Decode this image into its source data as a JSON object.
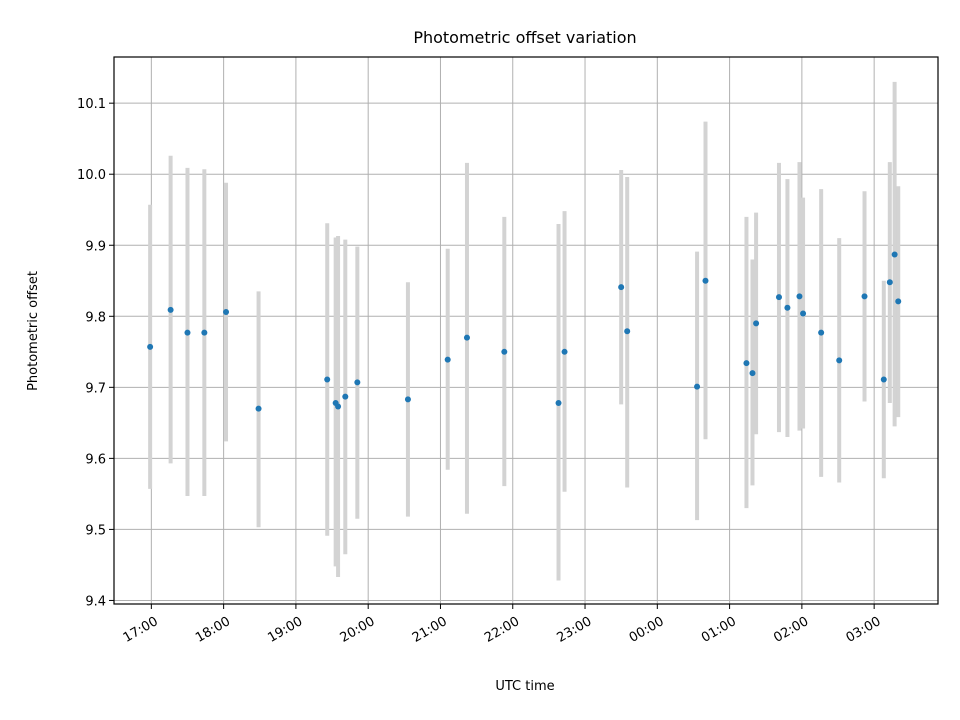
{
  "chart_data": {
    "type": "scatter",
    "title": "Photometric offset variation",
    "xlabel": "UTC time",
    "ylabel": "Photometric offset",
    "ylim": [
      9.395,
      10.165
    ],
    "xlim": [
      "16:29",
      "03:53"
    ],
    "grid": true,
    "point_color": "#1f77b4",
    "errorbar_color": "#d3d3d3",
    "x_ticks": [
      "17:00",
      "18:00",
      "19:00",
      "20:00",
      "21:00",
      "22:00",
      "23:00",
      "00:00",
      "01:00",
      "02:00",
      "03:00"
    ],
    "y_ticks": [
      9.4,
      9.5,
      9.6,
      9.7,
      9.8,
      9.9,
      10.0,
      10.1
    ],
    "y_tick_labels": [
      "9.4",
      "9.5",
      "9.6",
      "9.7",
      "9.8",
      "9.9",
      "10.0",
      "10.1"
    ],
    "points": [
      {
        "x": "16:59",
        "y": 9.757,
        "err_low": 9.557,
        "err_high": 9.957
      },
      {
        "x": "17:16",
        "y": 9.809,
        "err_low": 9.593,
        "err_high": 10.026
      },
      {
        "x": "17:30",
        "y": 9.777,
        "err_low": 9.547,
        "err_high": 10.009
      },
      {
        "x": "17:44",
        "y": 9.777,
        "err_low": 9.547,
        "err_high": 10.007
      },
      {
        "x": "18:02",
        "y": 9.806,
        "err_low": 9.624,
        "err_high": 9.988
      },
      {
        "x": "18:29",
        "y": 9.67,
        "err_low": 9.503,
        "err_high": 9.835
      },
      {
        "x": "19:26",
        "y": 9.711,
        "err_low": 9.491,
        "err_high": 9.931
      },
      {
        "x": "19:33",
        "y": 9.678,
        "err_low": 9.448,
        "err_high": 9.911
      },
      {
        "x": "19:35",
        "y": 9.673,
        "err_low": 9.433,
        "err_high": 9.913
      },
      {
        "x": "19:41",
        "y": 9.687,
        "err_low": 9.465,
        "err_high": 9.908
      },
      {
        "x": "19:51",
        "y": 9.707,
        "err_low": 9.515,
        "err_high": 9.898
      },
      {
        "x": "20:33",
        "y": 9.683,
        "err_low": 9.518,
        "err_high": 9.848
      },
      {
        "x": "21:06",
        "y": 9.739,
        "err_low": 9.584,
        "err_high": 9.895
      },
      {
        "x": "21:22",
        "y": 9.77,
        "err_low": 9.522,
        "err_high": 10.016
      },
      {
        "x": "21:53",
        "y": 9.75,
        "err_low": 9.561,
        "err_high": 9.94
      },
      {
        "x": "22:38",
        "y": 9.678,
        "err_low": 9.428,
        "err_high": 9.93
      },
      {
        "x": "22:43",
        "y": 9.75,
        "err_low": 9.553,
        "err_high": 9.948
      },
      {
        "x": "23:30",
        "y": 9.841,
        "err_low": 9.676,
        "err_high": 10.006
      },
      {
        "x": "23:35",
        "y": 9.779,
        "err_low": 9.559,
        "err_high": 9.996
      },
      {
        "x": "00:33",
        "y": 9.701,
        "err_low": 9.513,
        "err_high": 9.891
      },
      {
        "x": "00:40",
        "y": 9.85,
        "err_low": 9.627,
        "err_high": 10.074
      },
      {
        "x": "01:14",
        "y": 9.734,
        "err_low": 9.53,
        "err_high": 9.94
      },
      {
        "x": "01:19",
        "y": 9.72,
        "err_low": 9.562,
        "err_high": 9.88
      },
      {
        "x": "01:22",
        "y": 9.79,
        "err_low": 9.634,
        "err_high": 9.946
      },
      {
        "x": "01:41",
        "y": 9.827,
        "err_low": 9.637,
        "err_high": 10.016
      },
      {
        "x": "01:48",
        "y": 9.812,
        "err_low": 9.63,
        "err_high": 9.993
      },
      {
        "x": "01:58",
        "y": 9.828,
        "err_low": 9.639,
        "err_high": 10.017
      },
      {
        "x": "02:01",
        "y": 9.804,
        "err_low": 9.642,
        "err_high": 9.967
      },
      {
        "x": "02:16",
        "y": 9.777,
        "err_low": 9.574,
        "err_high": 9.979
      },
      {
        "x": "02:31",
        "y": 9.738,
        "err_low": 9.566,
        "err_high": 9.91
      },
      {
        "x": "02:52",
        "y": 9.828,
        "err_low": 9.68,
        "err_high": 9.976
      },
      {
        "x": "03:08",
        "y": 9.711,
        "err_low": 9.572,
        "err_high": 9.85
      },
      {
        "x": "03:13",
        "y": 9.848,
        "err_low": 9.678,
        "err_high": 10.017
      },
      {
        "x": "03:17",
        "y": 9.887,
        "err_low": 9.645,
        "err_high": 10.13
      },
      {
        "x": "03:20",
        "y": 9.821,
        "err_low": 9.658,
        "err_high": 9.983
      }
    ]
  }
}
